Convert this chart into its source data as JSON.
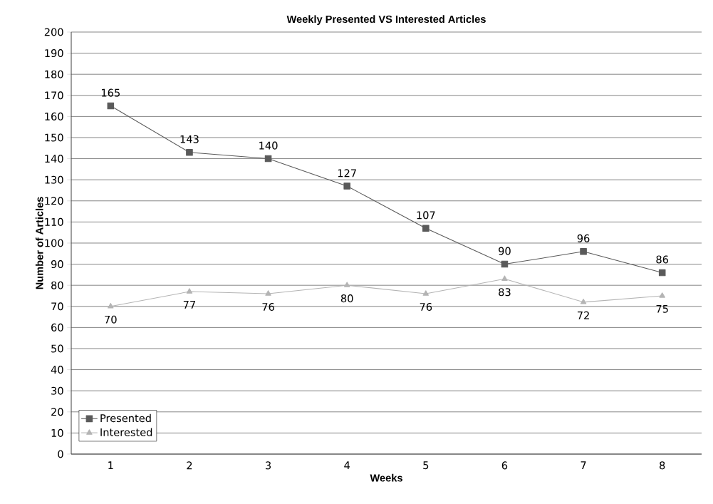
{
  "chart_data": {
    "type": "line",
    "title": "Weekly Presented VS Interested Articles",
    "xlabel": "Weeks",
    "ylabel": "Number of Articles",
    "categories": [
      "1",
      "2",
      "3",
      "4",
      "5",
      "6",
      "7",
      "8"
    ],
    "series": [
      {
        "name": "Presented",
        "color": "#5a5a5a",
        "marker": "square",
        "values": [
          165,
          143,
          140,
          127,
          107,
          90,
          96,
          86
        ]
      },
      {
        "name": "Interested",
        "color": "#b4b4b4",
        "marker": "triangle",
        "values": [
          70,
          77,
          76,
          80,
          76,
          83,
          72,
          75
        ]
      }
    ],
    "ylim": [
      0,
      200
    ],
    "yticks": [
      0,
      10,
      20,
      30,
      40,
      50,
      60,
      70,
      80,
      90,
      100,
      110,
      120,
      130,
      140,
      150,
      160,
      170,
      180,
      190,
      200
    ],
    "grid": "y",
    "legend": "bottom left",
    "data_labels": true,
    "line_style": "solid"
  }
}
